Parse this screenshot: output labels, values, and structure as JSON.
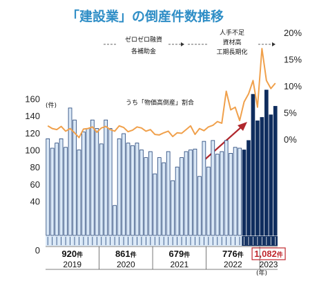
{
  "title": "「建設業」の倒産件数推移",
  "chart_data": {
    "type": "bar",
    "left_axis": {
      "unit": "(件)",
      "ticks": [
        160,
        140,
        120,
        100,
        80,
        60,
        40,
        0
      ]
    },
    "right_axis": {
      "ticks": [
        "20%",
        "15%",
        "10%",
        "5%",
        "0%"
      ]
    },
    "years": [
      {
        "label": "2019",
        "total": "920",
        "unit": "件",
        "highlight": false
      },
      {
        "label": "2020",
        "total": "861",
        "unit": "件",
        "highlight": false
      },
      {
        "label": "2021",
        "total": "679",
        "unit": "件",
        "highlight": false
      },
      {
        "label": "2022",
        "total": "776",
        "unit": "件",
        "highlight": false
      },
      {
        "label": "2023",
        "total": "1,082",
        "unit": "件",
        "highlight": true
      }
    ],
    "year_unit": "(年)",
    "bars": [
      113,
      102,
      108,
      113,
      103,
      149,
      135,
      100,
      121,
      125,
      135,
      125,
      107,
      135,
      125,
      35,
      113,
      119,
      108,
      105,
      108,
      100,
      91,
      98,
      72,
      91,
      85,
      98,
      64,
      80,
      91,
      98,
      100,
      101,
      69,
      110,
      80,
      111,
      95,
      98,
      111,
      96,
      103,
      102,
      100,
      111,
      165,
      134,
      138,
      170,
      141,
      151
    ],
    "highlight_from_index": 44,
    "line_series_name": "うち「物価高倒産」割合",
    "line_pct": [
      2.5,
      2.0,
      1.8,
      2.4,
      1.5,
      2.0,
      1.2,
      0.3,
      1.9,
      2.0,
      2.3,
      1.3,
      2.1,
      2.4,
      1.8,
      1.5,
      2.5,
      2.2,
      1.4,
      1.7,
      2.3,
      2.1,
      1.5,
      1.8,
      0.9,
      0.8,
      1.2,
      1.5,
      0.5,
      1.2,
      1.1,
      1.8,
      2.5,
      0.9,
      2.0,
      1.6,
      2.3,
      2.6,
      3.3,
      3.0,
      9.0,
      5.5,
      6.0,
      3.5,
      7.0,
      8.5,
      11.0,
      6.0,
      17.0,
      11.0,
      9.5,
      10.5
    ],
    "annotations": [
      {
        "name": "zero-zero-loan",
        "lines": [
          "ゼロゼロ融資",
          "各補助金"
        ]
      },
      {
        "name": "labor-shortage",
        "lines": [
          "人手不足",
          "資材高",
          "工期長期化"
        ]
      }
    ],
    "ylim": [
      0,
      170
    ],
    "y2lim": [
      0,
      20
    ]
  }
}
